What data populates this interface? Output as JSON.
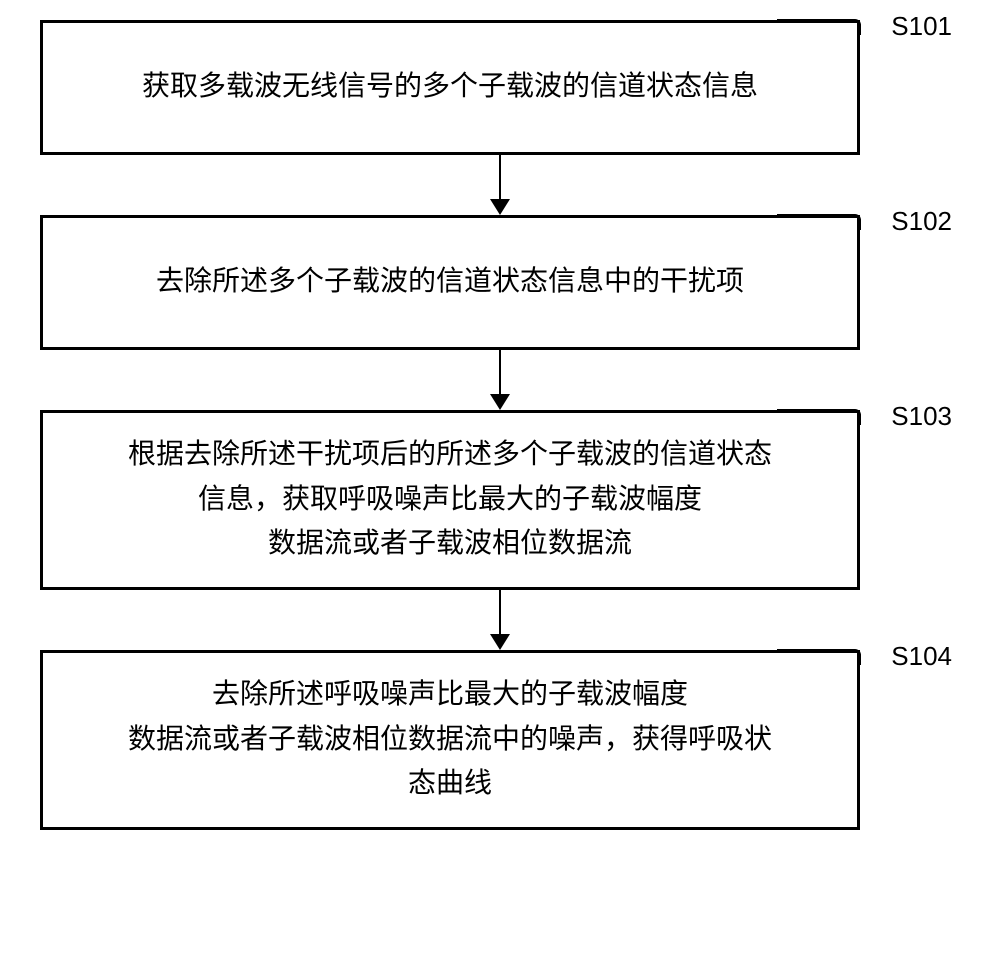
{
  "flowchart": {
    "type": "flowchart",
    "direction": "vertical",
    "background_color": "#ffffff",
    "border_color": "#000000",
    "border_width": 3,
    "text_color": "#000000",
    "font_size": 28,
    "font_family": "SimSun",
    "label_font_family": "Arial",
    "label_font_size": 26,
    "arrow_color": "#000000",
    "arrow_line_width": 2.5,
    "steps": [
      {
        "id": "S101",
        "text": "获取多载波无线信号的多个子载波的信道状态信息",
        "height": 135
      },
      {
        "id": "S102",
        "text": "去除所述多个子载波的信道状态信息中的干扰项",
        "height": 135
      },
      {
        "id": "S103",
        "text": "根据去除所述干扰项后的所述多个子载波的信道状态信息，获取呼吸噪声比最大的子载波幅度数据流或者子载波相位数据流",
        "height": 180
      },
      {
        "id": "S104",
        "text": "去除所述呼吸噪声比最大的子载波幅度数据流或者子载波相位数据流中的噪声，获得呼吸状态曲线",
        "height": 180
      }
    ],
    "edges": [
      {
        "from": "S101",
        "to": "S102"
      },
      {
        "from": "S102",
        "to": "S103"
      },
      {
        "from": "S103",
        "to": "S104"
      }
    ]
  }
}
